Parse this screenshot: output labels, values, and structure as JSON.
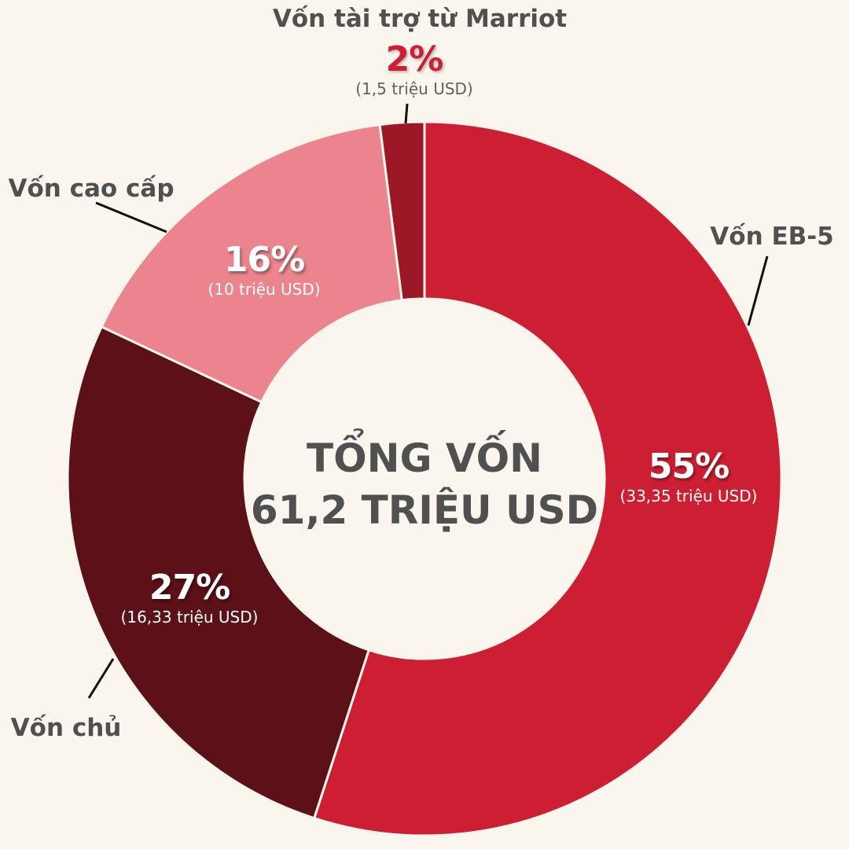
{
  "chart_data": {
    "type": "pie",
    "donut": true,
    "center_title": [
      "TỔNG VỐN",
      "61,2 TRIỆU USD"
    ],
    "slices": [
      {
        "name": "Vốn EB-5",
        "percent": 55,
        "pct_label": "55%",
        "amount_label": "(33,35 triệu USD)",
        "color": "#cc1f33"
      },
      {
        "name": "Vốn chủ",
        "percent": 27,
        "pct_label": "27%",
        "amount_label": "(16,33 triệu USD)",
        "color": "#5c1018"
      },
      {
        "name": "Vốn cao cấp",
        "percent": 16,
        "pct_label": "16%",
        "amount_label": "(10 triệu USD)",
        "color": "#eb848d"
      },
      {
        "name": "Vốn tài trợ từ Marriot",
        "percent": 2,
        "pct_label": "2%",
        "amount_label": "(1,5 triệu USD)",
        "color": "#9c1826"
      }
    ],
    "background": "#faf6ee",
    "text_color": "#505050"
  }
}
